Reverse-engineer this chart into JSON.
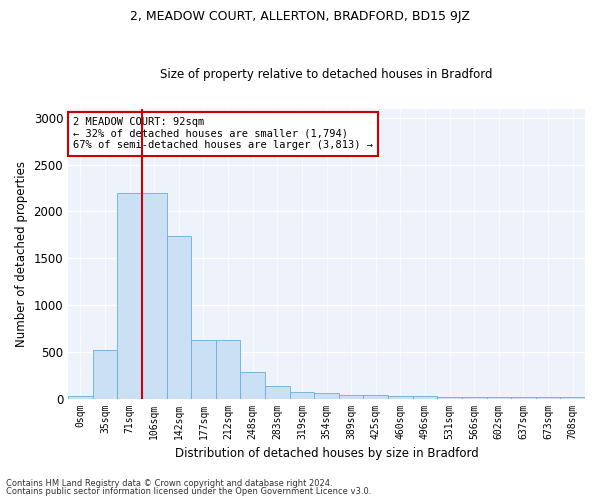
{
  "title": "2, MEADOW COURT, ALLERTON, BRADFORD, BD15 9JZ",
  "subtitle": "Size of property relative to detached houses in Bradford",
  "xlabel": "Distribution of detached houses by size in Bradford",
  "ylabel": "Number of detached properties",
  "bar_color": "#cce0f5",
  "bar_edge_color": "#6aaed6",
  "marker_color": "#cc0000",
  "background_color": "#eef3fb",
  "categories": [
    "0sqm",
    "35sqm",
    "71sqm",
    "106sqm",
    "142sqm",
    "177sqm",
    "212sqm",
    "248sqm",
    "283sqm",
    "319sqm",
    "354sqm",
    "389sqm",
    "425sqm",
    "460sqm",
    "496sqm",
    "531sqm",
    "566sqm",
    "602sqm",
    "637sqm",
    "673sqm",
    "708sqm"
  ],
  "values": [
    28,
    520,
    2195,
    2195,
    1740,
    630,
    630,
    285,
    130,
    65,
    55,
    40,
    40,
    28,
    28,
    18,
    18,
    18,
    18,
    18,
    18
  ],
  "property_bin_index": 2,
  "annotation_text": "2 MEADOW COURT: 92sqm\n← 32% of detached houses are smaller (1,794)\n67% of semi-detached houses are larger (3,813) →",
  "ylim": [
    0,
    3100
  ],
  "yticks": [
    0,
    500,
    1000,
    1500,
    2000,
    2500,
    3000
  ],
  "footnote1": "Contains HM Land Registry data © Crown copyright and database right 2024.",
  "footnote2": "Contains public sector information licensed under the Open Government Licence v3.0."
}
